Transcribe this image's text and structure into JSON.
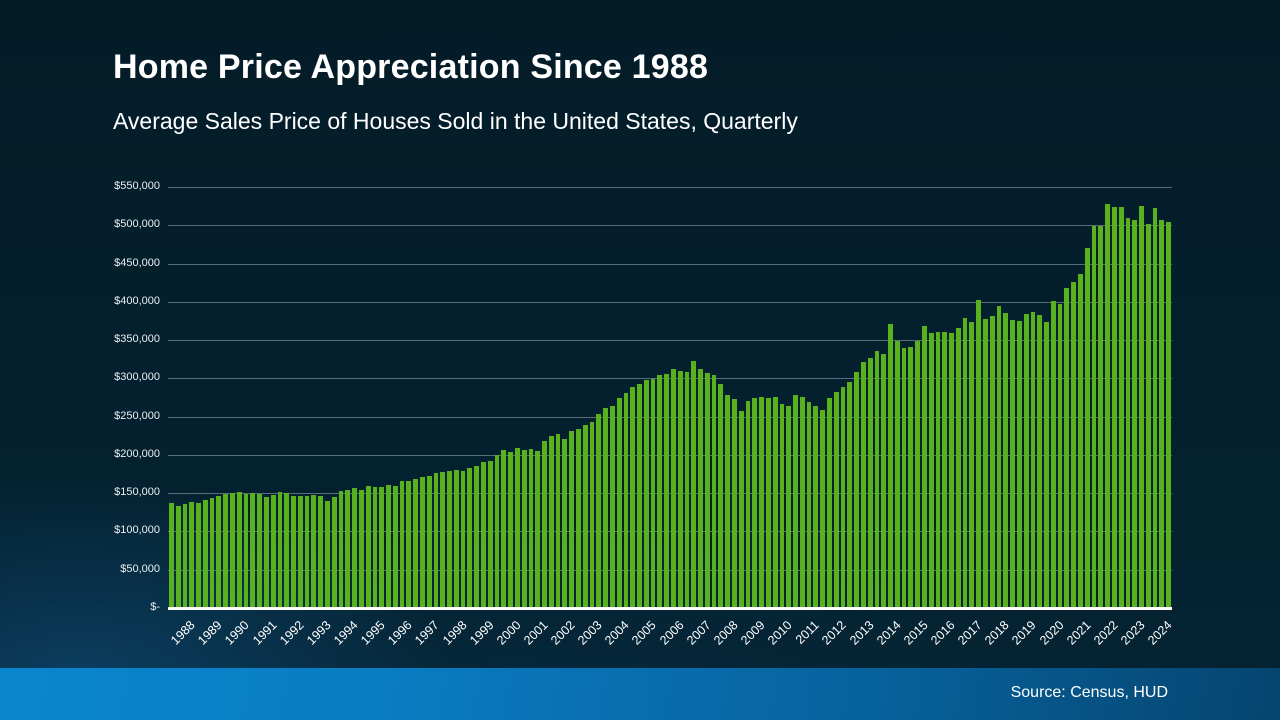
{
  "header": {
    "title": "Home Price Appreciation Since 1988",
    "subtitle": "Average Sales Price of Houses Sold in the United States, Quarterly"
  },
  "footer": {
    "source_label": "Source: Census, HUD"
  },
  "colors": {
    "bar": "#57b21d",
    "gridline": "#6f8089",
    "background": "#04202e",
    "footer_blue_start": "#0a86cf",
    "footer_blue_end": "#05456f",
    "text": "#ffffff"
  },
  "chart_data": {
    "type": "bar",
    "title": "Home Price Appreciation Since 1988",
    "subtitle": "Average Sales Price of Houses Sold in the United States, Quarterly",
    "xlabel": "",
    "ylabel": "",
    "unit": "USD",
    "frequency": "quarterly",
    "grid": true,
    "legend": false,
    "ylim": [
      0,
      550000
    ],
    "y_ticks": {
      "values": [
        550000,
        500000,
        450000,
        400000,
        350000,
        300000,
        250000,
        200000,
        150000,
        100000,
        50000,
        0
      ],
      "labels": [
        "$550,000",
        "$500,000",
        "$450,000",
        "$400,000",
        "$350,000",
        "$300,000",
        "$250,000",
        "$200,000",
        "$150,000",
        "$100,000",
        "$50,000",
        "$-"
      ]
    },
    "x_year_labels": [
      "1988",
      "1989",
      "1990",
      "1991",
      "1992",
      "1993",
      "1994",
      "1995",
      "1996",
      "1997",
      "1998",
      "1999",
      "2000",
      "2001",
      "2002",
      "2003",
      "2004",
      "2005",
      "2006",
      "2007",
      "2008",
      "2009",
      "2010",
      "2011",
      "2012",
      "2013",
      "2014",
      "2015",
      "2016",
      "2017",
      "2018",
      "2019",
      "2020",
      "2021",
      "2022",
      "2023",
      "2024"
    ],
    "quarters_per_year": 4,
    "values": [
      135500,
      132500,
      134500,
      137500,
      136500,
      140000,
      143000,
      144500,
      147500,
      149000,
      150500,
      147500,
      149500,
      148000,
      144000,
      146500,
      150500,
      148500,
      144500,
      145500,
      145500,
      146500,
      145500,
      138500,
      143500,
      152000,
      153000,
      155000,
      153500,
      157500,
      157000,
      156500,
      159500,
      158500,
      164000,
      165000,
      167000,
      169500,
      171500,
      175000,
      176000,
      178000,
      179500,
      178000,
      181000,
      184000,
      189000,
      191000,
      199000,
      205500,
      202000,
      207500,
      205000,
      206500,
      204000,
      216500,
      224000,
      226000,
      220000,
      229500,
      232500,
      238000,
      241500,
      252000,
      260000,
      263000,
      273000,
      279000,
      287000,
      291500,
      296500,
      298000,
      303500,
      304500,
      311000,
      308500,
      306500,
      322000,
      311000,
      305500,
      303500,
      291500,
      277500,
      271500,
      255500,
      269500,
      272500,
      274000,
      272500,
      275000,
      265000,
      263000,
      277500,
      274000,
      267500,
      262000,
      258000,
      272500,
      281500,
      287500,
      293500,
      306500,
      319500,
      325000,
      334500,
      330500,
      370000,
      347000,
      339000,
      340000,
      347000,
      367500,
      357500,
      359000,
      359500,
      357500,
      364000,
      377000,
      372500,
      400500,
      376500,
      380000,
      393500,
      384500,
      375500,
      374000,
      383000,
      385000,
      381500,
      372000,
      400000,
      396500,
      416500,
      424000,
      435000,
      468500,
      497500,
      498000,
      526000,
      522000,
      522000,
      508000,
      505000,
      524500,
      500500,
      521000,
      505500,
      502500
    ]
  }
}
